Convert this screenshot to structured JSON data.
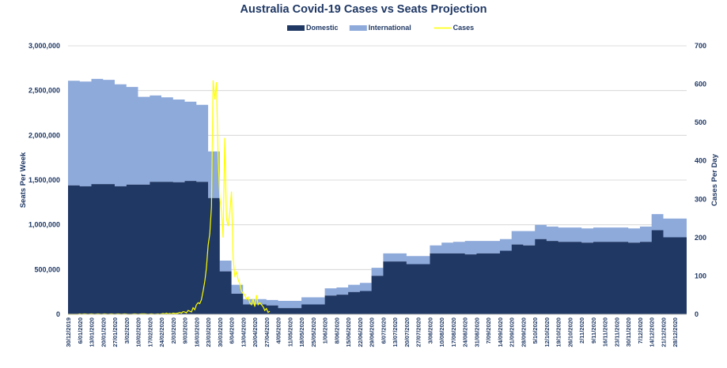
{
  "chart_data": {
    "type": "area",
    "title": "Australia  Covid-19 Cases vs Seats Projection",
    "ylabel_left": "Seats Per Week",
    "ylabel_right": "Cases Per Day",
    "ylim_left": [
      0,
      3000000
    ],
    "ylim_right": [
      0,
      700
    ],
    "left_ticks": [
      "0",
      "500,000",
      "1,000,000",
      "1,500,000",
      "2,000,000",
      "2,500,000",
      "3,000,000"
    ],
    "right_ticks": [
      "0",
      "100",
      "200",
      "300",
      "400",
      "500",
      "600",
      "700"
    ],
    "grid": true,
    "legend_position": "top",
    "colors": {
      "domestic": "#203864",
      "international": "#8eaadb",
      "cases": "#ffff00",
      "text": "#1f3864"
    },
    "legend": [
      {
        "name": "Domestic",
        "color": "#203864",
        "kind": "box"
      },
      {
        "name": "International",
        "color": "#8eaadb",
        "kind": "box"
      },
      {
        "name": "Cases",
        "color": "#ffff00",
        "kind": "line"
      }
    ],
    "x_labels": [
      "30/12/2019",
      "6/01/2020",
      "13/01/2020",
      "20/01/2020",
      "27/01/2020",
      "3/02/2020",
      "10/02/2020",
      "17/02/2020",
      "24/02/2020",
      "2/03/2020",
      "9/03/2020",
      "16/03/2020",
      "23/03/2020",
      "30/03/2020",
      "6/04/2020",
      "13/04/2020",
      "20/04/2020",
      "27/04/2020",
      "4/05/2020",
      "11/05/2020",
      "18/05/2020",
      "25/05/2020",
      "1/06/2020",
      "8/06/2020",
      "15/06/2020",
      "22/06/2020",
      "29/06/2020",
      "6/07/2020",
      "13/07/2020",
      "20/07/2020",
      "27/07/2020",
      "3/08/2020",
      "10/08/2020",
      "17/08/2020",
      "24/08/2020",
      "31/08/2020",
      "7/09/2020",
      "14/09/2020",
      "21/09/2020",
      "28/09/2020",
      "5/10/2020",
      "12/10/2020",
      "19/10/2020",
      "26/10/2020",
      "2/11/2020",
      "9/11/2020",
      "16/11/2020",
      "23/11/2020",
      "30/11/2020",
      "7/12/2020",
      "14/12/2020",
      "21/12/2020",
      "28/12/2020"
    ],
    "series": [
      {
        "name": "Domestic",
        "type": "area",
        "values": [
          1440000,
          1430000,
          1455000,
          1455000,
          1430000,
          1450000,
          1450000,
          1480000,
          1480000,
          1475000,
          1490000,
          1480000,
          1300000,
          480000,
          230000,
          110000,
          110000,
          100000,
          70000,
          70000,
          110000,
          110000,
          210000,
          220000,
          250000,
          260000,
          430000,
          590000,
          590000,
          560000,
          560000,
          680000,
          680000,
          680000,
          670000,
          680000,
          680000,
          710000,
          780000,
          770000,
          840000,
          820000,
          810000,
          810000,
          800000,
          810000,
          810000,
          810000,
          800000,
          810000,
          940000,
          860000,
          860000
        ]
      },
      {
        "name": "International",
        "type": "area",
        "values": [
          1170000,
          1170000,
          1175000,
          1165000,
          1140000,
          1090000,
          980000,
          965000,
          945000,
          925000,
          885000,
          860000,
          520000,
          120000,
          100000,
          60000,
          60000,
          60000,
          80000,
          80000,
          80000,
          80000,
          80000,
          80000,
          80000,
          90000,
          90000,
          90000,
          90000,
          90000,
          90000,
          90000,
          120000,
          130000,
          150000,
          140000,
          140000,
          130000,
          150000,
          160000,
          160000,
          160000,
          160000,
          160000,
          160000,
          160000,
          160000,
          160000,
          160000,
          170000,
          180000,
          210000,
          210000
        ]
      },
      {
        "name": "Cases",
        "type": "line",
        "axis": "right",
        "points": [
          [
            0,
            0
          ],
          [
            3,
            0
          ],
          [
            6,
            0
          ],
          [
            7,
            1
          ],
          [
            8,
            0
          ],
          [
            10,
            1
          ],
          [
            12,
            0
          ],
          [
            14,
            1
          ],
          [
            16,
            0
          ],
          [
            18,
            1
          ],
          [
            20,
            0
          ],
          [
            22,
            1
          ],
          [
            24,
            0
          ],
          [
            26,
            1
          ],
          [
            28,
            0
          ],
          [
            30,
            1
          ],
          [
            32,
            0
          ],
          [
            34,
            1
          ],
          [
            36,
            0
          ],
          [
            38,
            0
          ],
          [
            40,
            1
          ],
          [
            42,
            0
          ],
          [
            44,
            1
          ],
          [
            46,
            1
          ],
          [
            48,
            0
          ],
          [
            50,
            1
          ],
          [
            52,
            0
          ],
          [
            54,
            1
          ],
          [
            55,
            0
          ],
          [
            56,
            1
          ],
          [
            57,
            2
          ],
          [
            58,
            1
          ],
          [
            59,
            3
          ],
          [
            60,
            1
          ],
          [
            61,
            2
          ],
          [
            62,
            1
          ],
          [
            63,
            3
          ],
          [
            64,
            2
          ],
          [
            65,
            2
          ],
          [
            66,
            3
          ],
          [
            67,
            5
          ],
          [
            68,
            3
          ],
          [
            69,
            7
          ],
          [
            70,
            6
          ],
          [
            71,
            4
          ],
          [
            72,
            10
          ],
          [
            73,
            8
          ],
          [
            74,
            6
          ],
          [
            75,
            17
          ],
          [
            76,
            12
          ],
          [
            77,
            25
          ],
          [
            78,
            30
          ],
          [
            79,
            28
          ],
          [
            80,
            38
          ],
          [
            81,
            60
          ],
          [
            82,
            85
          ],
          [
            83,
            120
          ],
          [
            84,
            180
          ],
          [
            85,
            210
          ],
          [
            86,
            280
          ],
          [
            87,
            610
          ],
          [
            88,
            560
          ],
          [
            89,
            605
          ],
          [
            90,
            410
          ],
          [
            91,
            305
          ],
          [
            92,
            270
          ],
          [
            93,
            200
          ],
          [
            94,
            460
          ],
          [
            95,
            250
          ],
          [
            96,
            230
          ],
          [
            97,
            265
          ],
          [
            98,
            320
          ],
          [
            99,
            145
          ],
          [
            100,
            100
          ],
          [
            101,
            110
          ],
          [
            102,
            90
          ],
          [
            103,
            80
          ],
          [
            104,
            60
          ],
          [
            105,
            55
          ],
          [
            106,
            50
          ],
          [
            107,
            40
          ],
          [
            108,
            45
          ],
          [
            109,
            30
          ],
          [
            110,
            25
          ],
          [
            111,
            40
          ],
          [
            112,
            20
          ],
          [
            113,
            50
          ],
          [
            114,
            25
          ],
          [
            115,
            30
          ],
          [
            116,
            25
          ],
          [
            117,
            20
          ],
          [
            118,
            10
          ],
          [
            119,
            15
          ],
          [
            120,
            5
          ],
          [
            121,
            8
          ]
        ]
      }
    ]
  }
}
